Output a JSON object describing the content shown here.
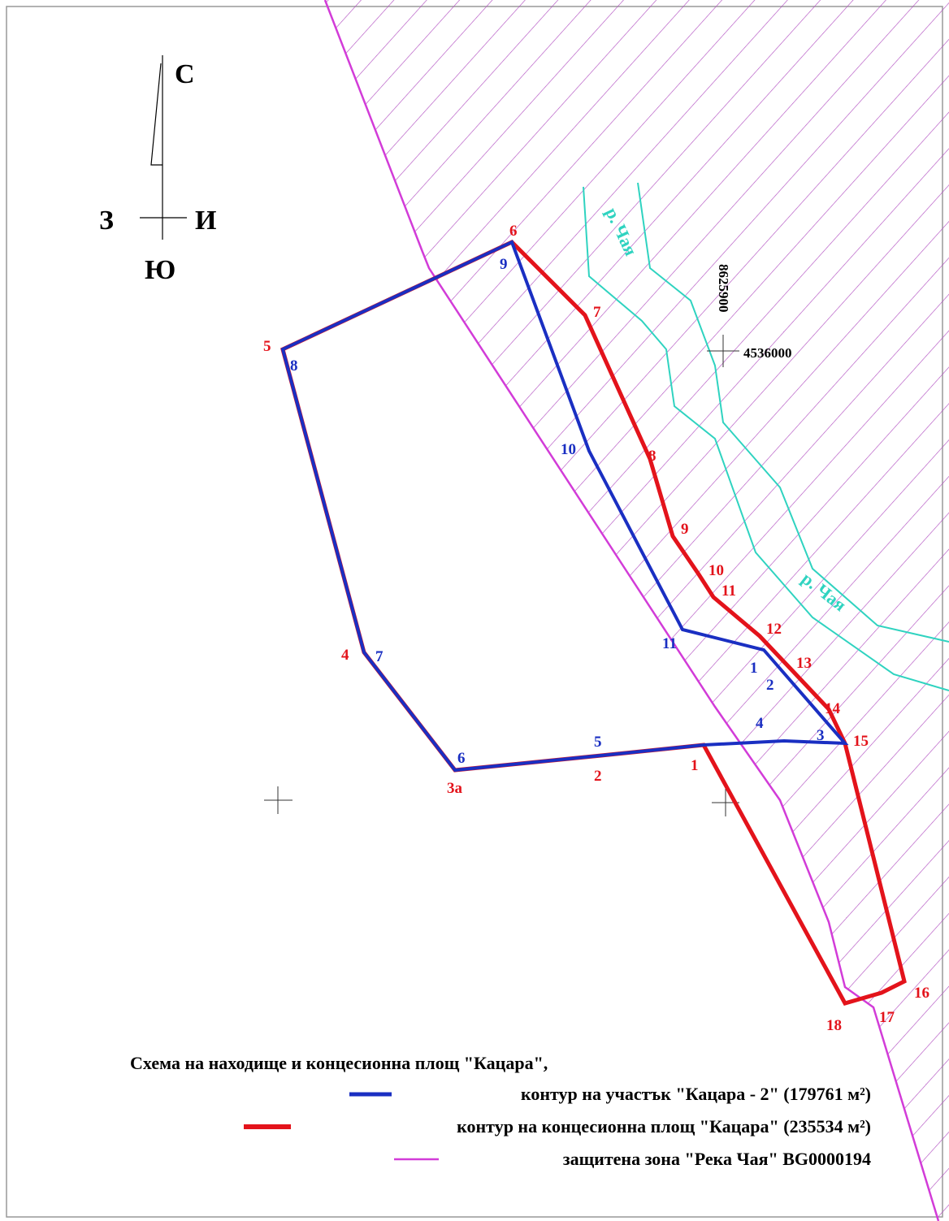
{
  "compass": {
    "north": "С",
    "west": "З",
    "east": "И",
    "south": "Ю"
  },
  "coordinates": {
    "northing": "4536000",
    "easting": "8625900"
  },
  "river_labels": [
    "р. Чая",
    "р. Чая"
  ],
  "concession_points": [
    "6",
    "7",
    "8",
    "9",
    "10",
    "11",
    "12",
    "13",
    "14",
    "15",
    "16",
    "17",
    "18",
    "1",
    "2",
    "3а",
    "4",
    "5"
  ],
  "section_points": [
    "9",
    "8",
    "7",
    "6",
    "5",
    "4",
    "3",
    "2",
    "1",
    "11",
    "10"
  ],
  "legend": {
    "title": "Схема на находище и концесионна площ \"Кацара\",",
    "items": [
      "контур на участък \"Кацара - 2\" (179761 м²)",
      "контур на концесионна площ \"Кацара\" (235534 м²)",
      "защитена зона \"Река Чая\" BG0000194"
    ]
  }
}
